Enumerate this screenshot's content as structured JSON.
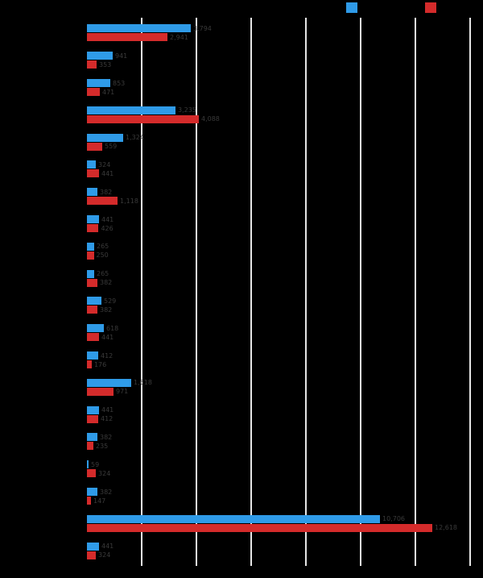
{
  "colors": {
    "background": "#000000",
    "gridline": "#e6e6e6",
    "value_label": "#3a3a3a",
    "series1": "#2F9BE8",
    "series2": "#D42B2B"
  },
  "legend": {
    "items": [
      {
        "label": "",
        "color": "#2F9BE8"
      },
      {
        "label": "",
        "color": "#D42B2B"
      }
    ]
  },
  "chart_data": {
    "type": "bar",
    "orientation": "horizontal",
    "title": "",
    "xlabel": "",
    "ylabel": "",
    "xlim": [
      0,
      14000
    ],
    "gridline_values": [
      2000,
      4000,
      6000,
      8000,
      10000,
      12000,
      14000
    ],
    "grid": true,
    "legend_position": "top-right",
    "categories": [
      "",
      "",
      "",
      "",
      "",
      "",
      "",
      "",
      "",
      "",
      "",
      "",
      "",
      "",
      "",
      "",
      "",
      "",
      "",
      ""
    ],
    "series": [
      {
        "name": "",
        "color": "#2F9BE8",
        "values": [
          3794,
          941,
          853,
          3235,
          1324,
          324,
          382,
          441,
          265,
          265,
          529,
          618,
          412,
          1618,
          441,
          382,
          59,
          382,
          10706,
          441
        ],
        "labels": [
          "3,794",
          "941",
          "853",
          "3,235",
          "1,324",
          "324",
          "382",
          "441",
          "265",
          "265",
          "529",
          "618",
          "412",
          "1,618",
          "441",
          "382",
          "59",
          "382",
          "10,706",
          "441"
        ]
      },
      {
        "name": "",
        "color": "#D42B2B",
        "values": [
          2941,
          353,
          471,
          4088,
          559,
          441,
          1118,
          426,
          250,
          382,
          382,
          441,
          176,
          971,
          412,
          235,
          324,
          147,
          12618,
          324
        ],
        "labels": [
          "2,941",
          "353",
          "471",
          "4,088",
          "559",
          "441",
          "1,118",
          "426",
          "250",
          "382",
          "382",
          "441",
          "176",
          "971",
          "412",
          "235",
          "324",
          "147",
          "12,618",
          "324"
        ]
      }
    ]
  }
}
